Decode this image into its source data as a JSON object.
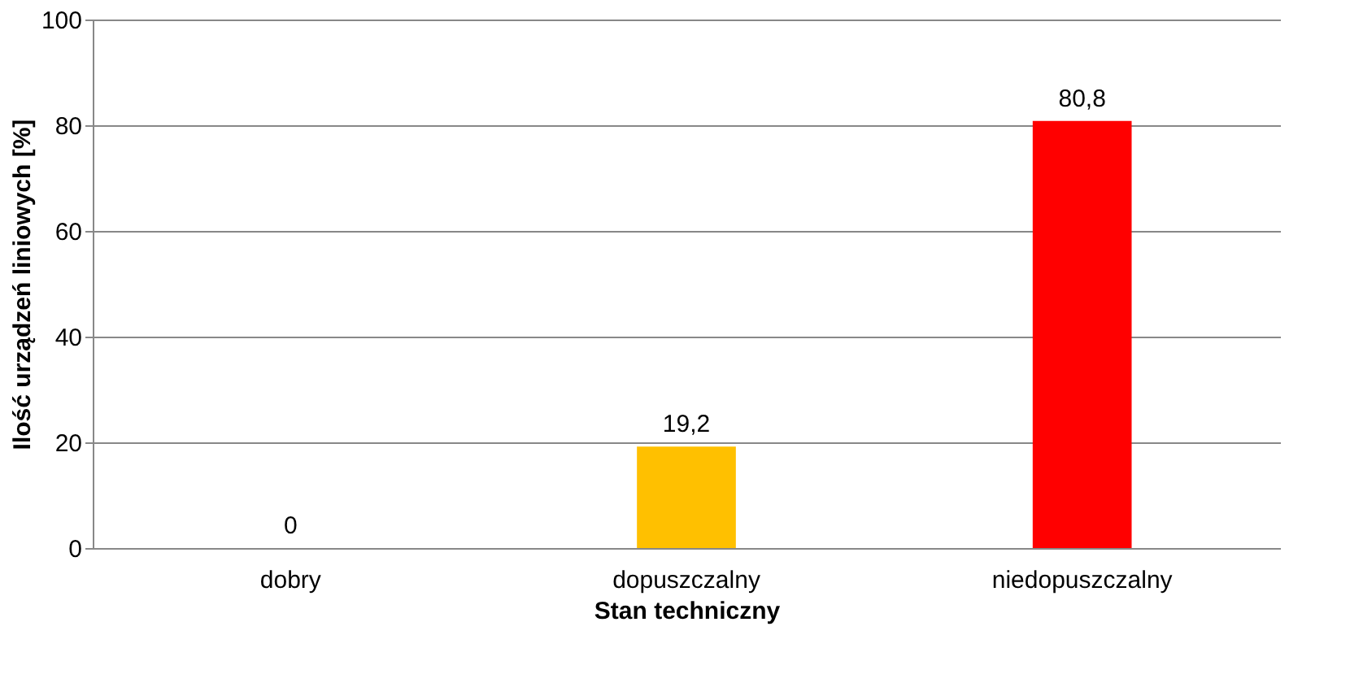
{
  "chart_data": {
    "type": "bar",
    "xlabel": "Stan techniczny",
    "ylabel": "Ilość urządzeń liniowych [%]",
    "categories": [
      "dobry",
      "dopuszczalny",
      "niedopuszczalny"
    ],
    "values": [
      0,
      19.2,
      80.8
    ],
    "colors": [
      "#00b050",
      "#ffc000",
      "#ff0000"
    ],
    "value_labels": [
      "0",
      "19,2",
      "80,8"
    ],
    "ylim": [
      0,
      100
    ],
    "yticks": [
      0,
      20,
      40,
      60,
      80,
      100
    ],
    "grid": "y"
  }
}
